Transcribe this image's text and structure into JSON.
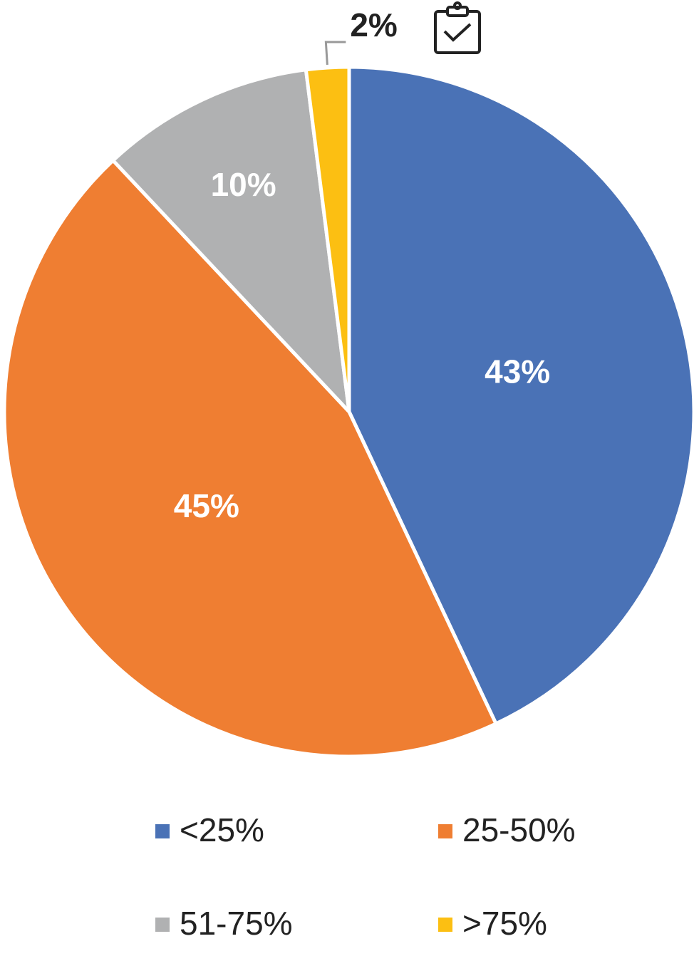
{
  "chart_data": {
    "type": "pie",
    "categories": [
      "<25%",
      "25-50%",
      "51-75%",
      ">75%"
    ],
    "values": [
      43,
      45,
      10,
      2
    ],
    "value_labels": [
      "43%",
      "45%",
      "10%",
      "2%"
    ],
    "colors": [
      "#4a72b6",
      "#ef7e32",
      "#b0b1b2",
      "#fcbf12"
    ],
    "legend": "bottom"
  }
}
